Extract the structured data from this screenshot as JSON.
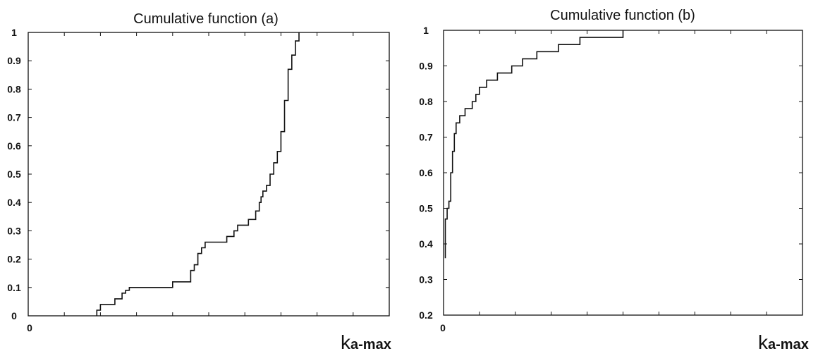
{
  "chart_data": [
    {
      "type": "line",
      "title": "Cumulative function (a)",
      "xlabel": "k",
      "xlabel_sub": "a-max",
      "ylabel": "",
      "ylim": [
        0,
        1
      ],
      "yticks": [
        "0",
        "0.1",
        "0.2",
        "0.3",
        "0.4",
        "0.5",
        "0.6",
        "0.7",
        "0.8",
        "0.9",
        "1"
      ],
      "xticks": [
        "0"
      ],
      "x_minor_ticks": 10,
      "grid": false,
      "series": [
        {
          "x": [
            0.19,
            0.19,
            0.2,
            0.24,
            0.26,
            0.27,
            0.28,
            0.3,
            0.33,
            0.4,
            0.44,
            0.45,
            0.46,
            0.47,
            0.47,
            0.48,
            0.49,
            0.53,
            0.55,
            0.56,
            0.57,
            0.58,
            0.61,
            0.62,
            0.63,
            0.64,
            0.645,
            0.65,
            0.66,
            0.67,
            0.68,
            0.69,
            0.7,
            0.71,
            0.72,
            0.73,
            0.74,
            0.75
          ],
          "y": [
            0.0,
            0.02,
            0.04,
            0.06,
            0.08,
            0.09,
            0.1,
            0.1,
            0.1,
            0.12,
            0.12,
            0.16,
            0.18,
            0.2,
            0.22,
            0.24,
            0.26,
            0.26,
            0.28,
            0.28,
            0.3,
            0.32,
            0.34,
            0.34,
            0.37,
            0.4,
            0.42,
            0.44,
            0.46,
            0.5,
            0.54,
            0.58,
            0.65,
            0.76,
            0.87,
            0.92,
            0.97,
            1.0
          ]
        }
      ]
    },
    {
      "type": "line",
      "title": "Cumulative function (b)",
      "xlabel": "k",
      "xlabel_sub": "a-max",
      "ylabel": "",
      "ylim": [
        0.2,
        1
      ],
      "yticks": [
        "0.2",
        "0.3",
        "0.4",
        "0.5",
        "0.6",
        "0.7",
        "0.8",
        "0.9",
        "1"
      ],
      "xticks": [
        "0"
      ],
      "x_minor_ticks": 10,
      "grid": false,
      "series": [
        {
          "x": [
            0.005,
            0.005,
            0.01,
            0.015,
            0.02,
            0.025,
            0.03,
            0.035,
            0.045,
            0.06,
            0.07,
            0.08,
            0.09,
            0.1,
            0.12,
            0.15,
            0.17,
            0.19,
            0.22,
            0.26,
            0.32,
            0.38,
            0.46,
            0.5
          ],
          "y": [
            0.36,
            0.47,
            0.5,
            0.52,
            0.6,
            0.66,
            0.71,
            0.74,
            0.76,
            0.78,
            0.78,
            0.8,
            0.82,
            0.84,
            0.86,
            0.88,
            0.88,
            0.9,
            0.92,
            0.94,
            0.96,
            0.98,
            0.98,
            1.0
          ]
        }
      ]
    }
  ]
}
